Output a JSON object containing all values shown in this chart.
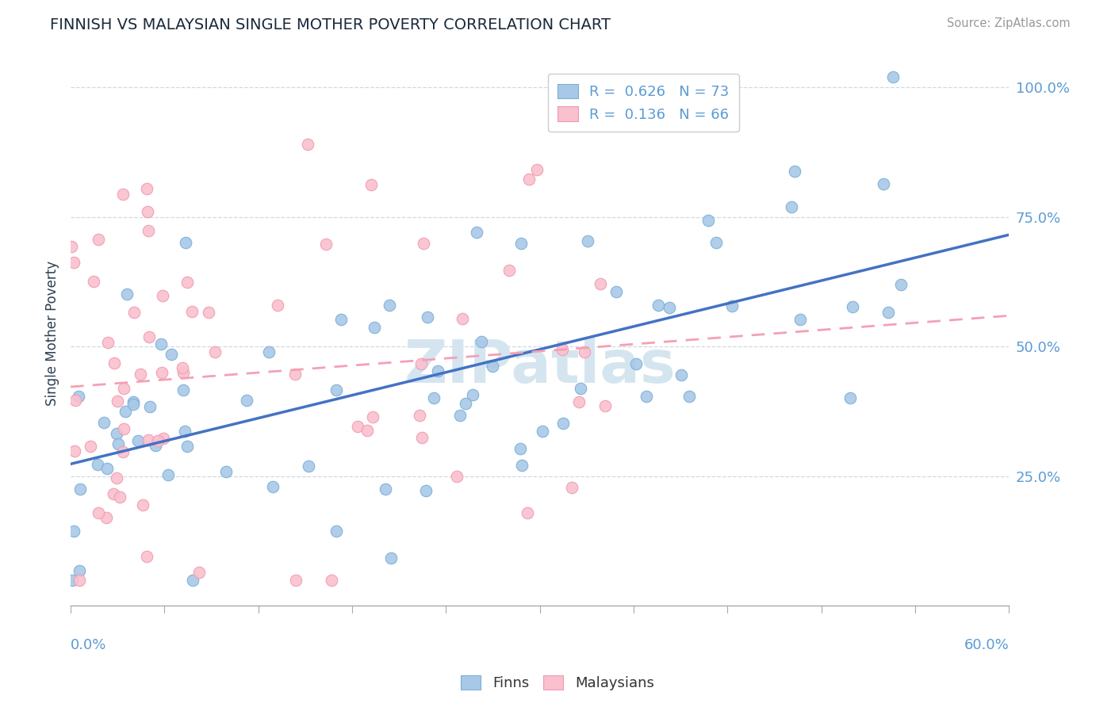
{
  "title": "FINNISH VS MALAYSIAN SINGLE MOTHER POVERTY CORRELATION CHART",
  "source_text": "Source: ZipAtlas.com",
  "ylabel": "Single Mother Poverty",
  "right_yticks": [
    "25.0%",
    "50.0%",
    "75.0%",
    "100.0%"
  ],
  "right_ytick_vals": [
    0.25,
    0.5,
    0.75,
    1.0
  ],
  "R_finns": 0.626,
  "N_finns": 73,
  "R_malaysians": 0.136,
  "N_malaysians": 66,
  "blue_dot_color": "#a8c8e8",
  "blue_dot_edge": "#7bafd4",
  "pink_dot_color": "#f9c0ce",
  "pink_dot_edge": "#f09ab0",
  "blue_line_color": "#4472c4",
  "pink_line_color": "#f4a0b5",
  "title_color": "#1a2a3a",
  "axis_color": "#5b9bd5",
  "watermark_color": "#d5e5f0",
  "background_color": "#ffffff",
  "grid_color": "#d0d8e0",
  "xlim": [
    0.0,
    0.6
  ],
  "ylim": [
    0.0,
    1.05
  ],
  "seed_finns": 7,
  "seed_malaysians": 99,
  "legend_R1": "0.626",
  "legend_N1": "73",
  "legend_R2": "0.136",
  "legend_N2": "66"
}
